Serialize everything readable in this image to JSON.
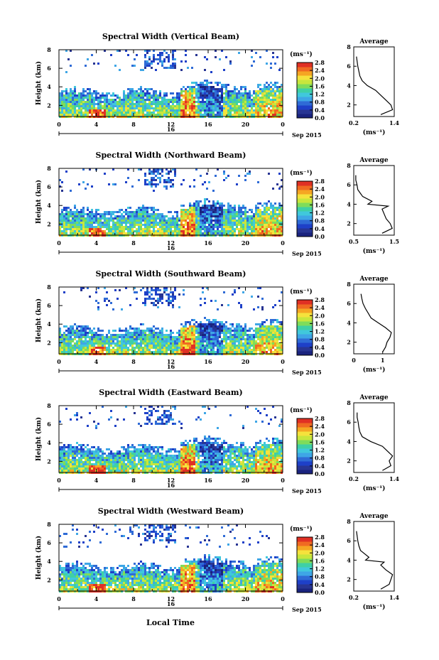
{
  "colors": {
    "colormap": [
      "#1a237e",
      "#283593",
      "#1e40c8",
      "#2f6bd6",
      "#3ea6e6",
      "#40c8dc",
      "#3fd0a5",
      "#7fdc5a",
      "#c8e63c",
      "#f5e23c",
      "#f5a623",
      "#f06a22",
      "#e03024"
    ]
  },
  "figure": {
    "xlabel_global": "Local Time",
    "date_label": "Sep 2015",
    "day_label": "16"
  },
  "chart_data": [
    {
      "type": "heatmap",
      "title": "Spectral Width (Vertical Beam)",
      "ylabel": "Height (km)",
      "yticks": [
        "2",
        "4",
        "6",
        "8"
      ],
      "ylim": [
        0.8,
        8.0
      ],
      "xticks": [
        "0",
        "4",
        "8",
        "12",
        "16",
        "20",
        "0"
      ],
      "xlim": [
        0,
        24
      ],
      "colorbar_label": "(ms⁻¹)",
      "colorbar_ticks": [
        "0.0",
        "0.4",
        "0.8",
        "1.2",
        "1.6",
        "2.0",
        "2.4",
        "2.8"
      ],
      "colorbar_range": [
        0.0,
        2.8
      ],
      "profile": {
        "title": "Average",
        "xlabel": "(ms⁻¹)",
        "xticks": [
          "0.2",
          "1.4"
        ],
        "xlim": [
          0.2,
          1.4
        ],
        "yticks": [
          "2",
          "4",
          "6",
          "8"
        ],
        "ylim": [
          0.8,
          8.0
        ],
        "height": [
          1.0,
          1.5,
          2.0,
          2.5,
          3.0,
          3.5,
          4.0,
          4.5,
          5.0,
          5.5,
          6.0,
          6.5,
          7.0
        ],
        "width": [
          1.0,
          1.35,
          1.3,
          1.15,
          1.0,
          0.85,
          0.6,
          0.45,
          0.38,
          0.35,
          0.32,
          0.3,
          0.28
        ]
      }
    },
    {
      "type": "heatmap",
      "title": "Spectral Width (Northward Beam)",
      "ylabel": "Height (km)",
      "yticks": [
        "2",
        "4",
        "6",
        "8"
      ],
      "ylim": [
        0.8,
        8.0
      ],
      "xticks": [
        "0",
        "4",
        "8",
        "12",
        "16",
        "20",
        "0"
      ],
      "xlim": [
        0,
        24
      ],
      "colorbar_label": "(ms⁻¹)",
      "colorbar_ticks": [
        "0.0",
        "0.4",
        "0.8",
        "1.2",
        "1.6",
        "2.0",
        "2.4",
        "2.8"
      ],
      "colorbar_range": [
        0.0,
        2.8
      ],
      "profile": {
        "title": "Average",
        "xlabel": "(ms⁻¹)",
        "xticks": [
          "0.5",
          "1.5"
        ],
        "xlim": [
          0.5,
          1.5
        ],
        "yticks": [
          "2",
          "4",
          "6",
          "8"
        ],
        "ylim": [
          0.8,
          8.0
        ],
        "height": [
          1.0,
          1.5,
          2.0,
          2.5,
          3.0,
          3.5,
          3.8,
          4.0,
          4.3,
          4.8,
          5.5,
          6.0,
          6.5,
          7.0
        ],
        "width": [
          1.2,
          1.45,
          1.4,
          1.3,
          1.25,
          1.2,
          1.35,
          0.85,
          0.95,
          0.72,
          0.6,
          0.58,
          0.55,
          0.55
        ]
      }
    },
    {
      "type": "heatmap",
      "title": "Spectral Width (Southward Beam)",
      "ylabel": "Height (km)",
      "yticks": [
        "2",
        "4",
        "6",
        "8"
      ],
      "ylim": [
        0.8,
        8.0
      ],
      "xticks": [
        "0",
        "4",
        "8",
        "12",
        "16",
        "20",
        "0"
      ],
      "xlim": [
        0,
        24
      ],
      "colorbar_label": "(ms⁻¹)",
      "colorbar_ticks": [
        "0.0",
        "0.4",
        "0.8",
        "1.2",
        "1.6",
        "2.0",
        "2.4",
        "2.8"
      ],
      "colorbar_range": [
        0.0,
        2.8
      ],
      "profile": {
        "title": "Average",
        "xlabel": "(ms⁻¹)",
        "xticks": [
          "0",
          "1"
        ],
        "xlim": [
          0.0,
          1.4
        ],
        "yticks": [
          "2",
          "4",
          "6",
          "8"
        ],
        "ylim": [
          0.8,
          8.0
        ],
        "height": [
          1.0,
          1.5,
          2.0,
          2.5,
          3.0,
          3.5,
          4.0,
          4.5,
          5.0,
          5.5,
          6.0,
          6.5,
          7.0
        ],
        "width": [
          1.0,
          1.1,
          1.15,
          1.25,
          1.3,
          1.1,
          0.85,
          0.6,
          0.5,
          0.4,
          0.32,
          0.28,
          0.25
        ]
      }
    },
    {
      "type": "heatmap",
      "title": "Spectral Width (Eastward Beam)",
      "ylabel": "Height (km)",
      "yticks": [
        "2",
        "4",
        "6",
        "8"
      ],
      "ylim": [
        0.8,
        8.0
      ],
      "xticks": [
        "0",
        "4",
        "8",
        "12",
        "16",
        "20",
        "0"
      ],
      "xlim": [
        0,
        24
      ],
      "colorbar_label": "(ms⁻¹)",
      "colorbar_ticks": [
        "0.0",
        "0.4",
        "0.8",
        "1.2",
        "1.6",
        "2.0",
        "2.4",
        "2.8"
      ],
      "colorbar_range": [
        0.0,
        2.8
      ],
      "profile": {
        "title": "Average",
        "xlabel": "(ms⁻¹)",
        "xticks": [
          "0.2",
          "1.4"
        ],
        "xlim": [
          0.2,
          1.4
        ],
        "yticks": [
          "2",
          "4",
          "6",
          "8"
        ],
        "ylim": [
          0.8,
          8.0
        ],
        "height": [
          1.0,
          1.5,
          2.0,
          2.5,
          3.0,
          3.5,
          4.0,
          4.5,
          5.0,
          5.5,
          6.0,
          6.5,
          7.0
        ],
        "width": [
          1.05,
          1.3,
          1.25,
          1.35,
          1.2,
          1.05,
          0.7,
          0.45,
          0.38,
          0.35,
          0.33,
          0.3,
          0.3
        ]
      }
    },
    {
      "type": "heatmap",
      "title": "Spectral Width (Westward Beam)",
      "ylabel": "Height (km)",
      "yticks": [
        "2",
        "4",
        "6",
        "8"
      ],
      "ylim": [
        0.8,
        8.0
      ],
      "xticks": [
        "0",
        "4",
        "8",
        "12",
        "16",
        "20",
        "0"
      ],
      "xlim": [
        0,
        24
      ],
      "colorbar_label": "(ms⁻¹)",
      "colorbar_ticks": [
        "0.0",
        "0.4",
        "0.8",
        "1.2",
        "1.6",
        "2.0",
        "2.4",
        "2.8"
      ],
      "colorbar_range": [
        0.0,
        2.8
      ],
      "profile": {
        "title": "Average",
        "xlabel": "(ms⁻¹)",
        "xticks": [
          "0.2",
          "1.4"
        ],
        "xlim": [
          0.2,
          1.4
        ],
        "yticks": [
          "2",
          "4",
          "6",
          "8"
        ],
        "ylim": [
          0.8,
          8.0
        ],
        "height": [
          1.0,
          1.5,
          2.0,
          2.5,
          3.0,
          3.5,
          3.8,
          4.0,
          4.3,
          5.0,
          5.5,
          6.0,
          6.5,
          7.0
        ],
        "width": [
          1.0,
          1.25,
          1.3,
          1.35,
          1.15,
          1.0,
          1.1,
          0.55,
          0.65,
          0.4,
          0.35,
          0.32,
          0.3,
          0.28
        ]
      }
    }
  ]
}
